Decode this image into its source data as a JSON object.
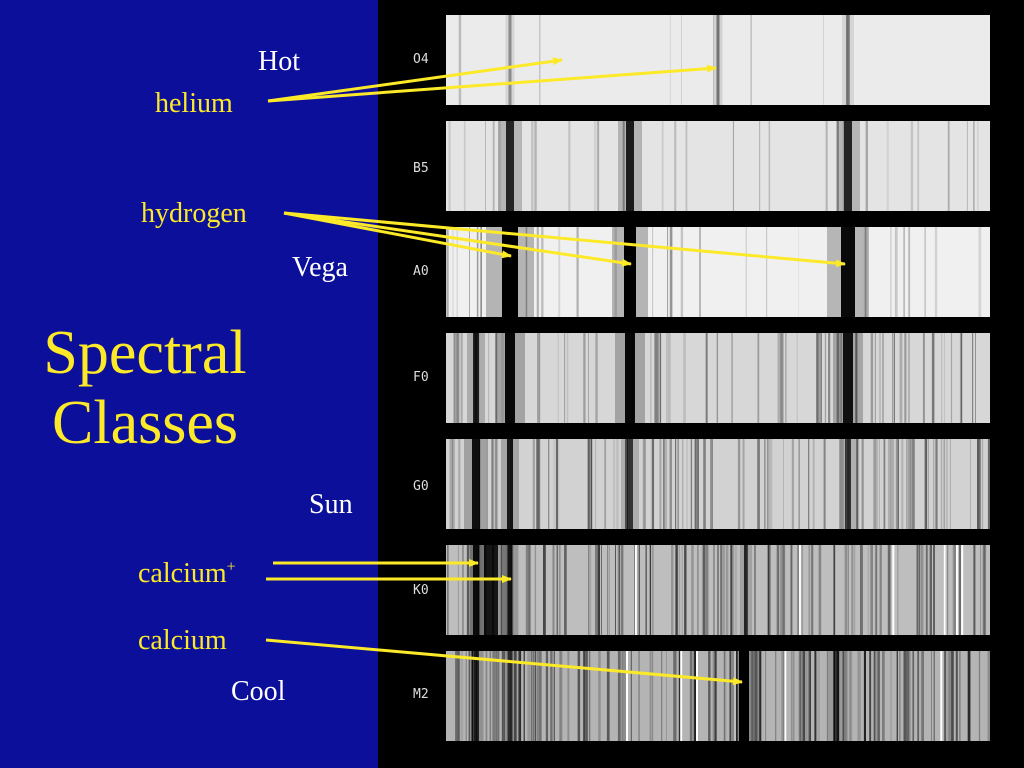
{
  "title": {
    "line1": "Spectral",
    "line2": "Classes"
  },
  "labels": {
    "hot": "Hot",
    "helium": "helium",
    "hydrogen": "hydrogen",
    "vega": "Vega",
    "sun": "Sun",
    "calcium_plus": "calcium",
    "calcium_plus_sup": "+",
    "calcium": "calcium",
    "cool": "Cool"
  },
  "spectral_classes": [
    "O4",
    "B5",
    "A0",
    "F0",
    "G0",
    "K0",
    "M2"
  ],
  "colors": {
    "background": "#0c0f9a",
    "accent": "#fce928",
    "panel": "#000000"
  }
}
